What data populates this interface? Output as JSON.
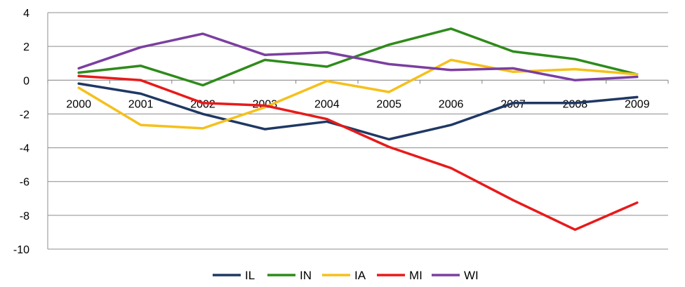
{
  "chart_data": {
    "type": "line",
    "title": "",
    "xlabel": "",
    "ylabel": "",
    "categories": [
      "2000",
      "2001",
      "2002",
      "2003",
      "2004",
      "2005",
      "2006",
      "2007",
      "2008",
      "2009"
    ],
    "ylim": [
      -10,
      4
    ],
    "yticks": [
      4,
      2,
      0,
      -2,
      -4,
      -6,
      -8,
      -10
    ],
    "grid": "horizontal",
    "legend": "bottom",
    "series": [
      {
        "name": "IL",
        "color": "#1f3864",
        "values": [
          -0.2,
          -0.8,
          -2.0,
          -2.9,
          -2.45,
          -3.5,
          -2.65,
          -1.35,
          -1.35,
          -1.0
        ]
      },
      {
        "name": "IN",
        "color": "#2e8b1a",
        "values": [
          0.45,
          0.85,
          -0.3,
          1.2,
          0.8,
          2.1,
          3.05,
          1.7,
          1.25,
          0.35
        ]
      },
      {
        "name": "IA",
        "color": "#f5c01a",
        "values": [
          -0.45,
          -2.65,
          -2.85,
          -1.6,
          -0.05,
          -0.7,
          1.2,
          0.5,
          0.65,
          0.35
        ]
      },
      {
        "name": "MI",
        "color": "#e81a1a",
        "values": [
          0.25,
          0.0,
          -1.35,
          -1.5,
          -2.3,
          -3.95,
          -5.2,
          -7.1,
          -8.85,
          -7.25
        ]
      },
      {
        "name": "WI",
        "color": "#7b3fa0",
        "values": [
          0.7,
          1.95,
          2.75,
          1.5,
          1.65,
          0.95,
          0.6,
          0.7,
          0.0,
          0.2
        ]
      }
    ]
  }
}
